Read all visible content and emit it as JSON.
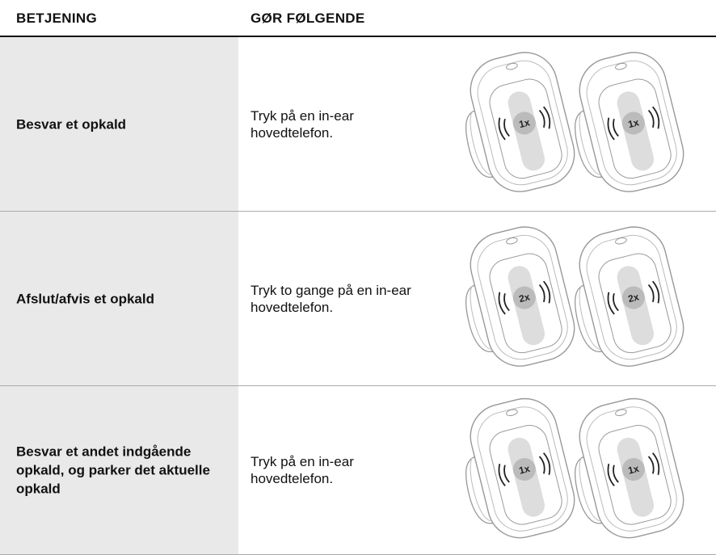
{
  "table": {
    "header": [
      "BETJENING",
      "GØR FØLGENDE"
    ],
    "rows": [
      {
        "control": "Besvar et opkald",
        "action": "Tryk på en in-ear hovedtelefon.",
        "taps": [
          "1x",
          "1x"
        ]
      },
      {
        "control": "Afslut/afvis et opkald",
        "action": "Tryk to gange på en in-ear hovedtelefon.",
        "taps": [
          "2x",
          "2x"
        ]
      },
      {
        "control": "Besvar et andet indgående opkald, og parker det aktuelle opkald",
        "action": "Tryk på en in-ear hovedtelefon.",
        "taps": [
          "1x",
          "1x"
        ]
      }
    ]
  }
}
